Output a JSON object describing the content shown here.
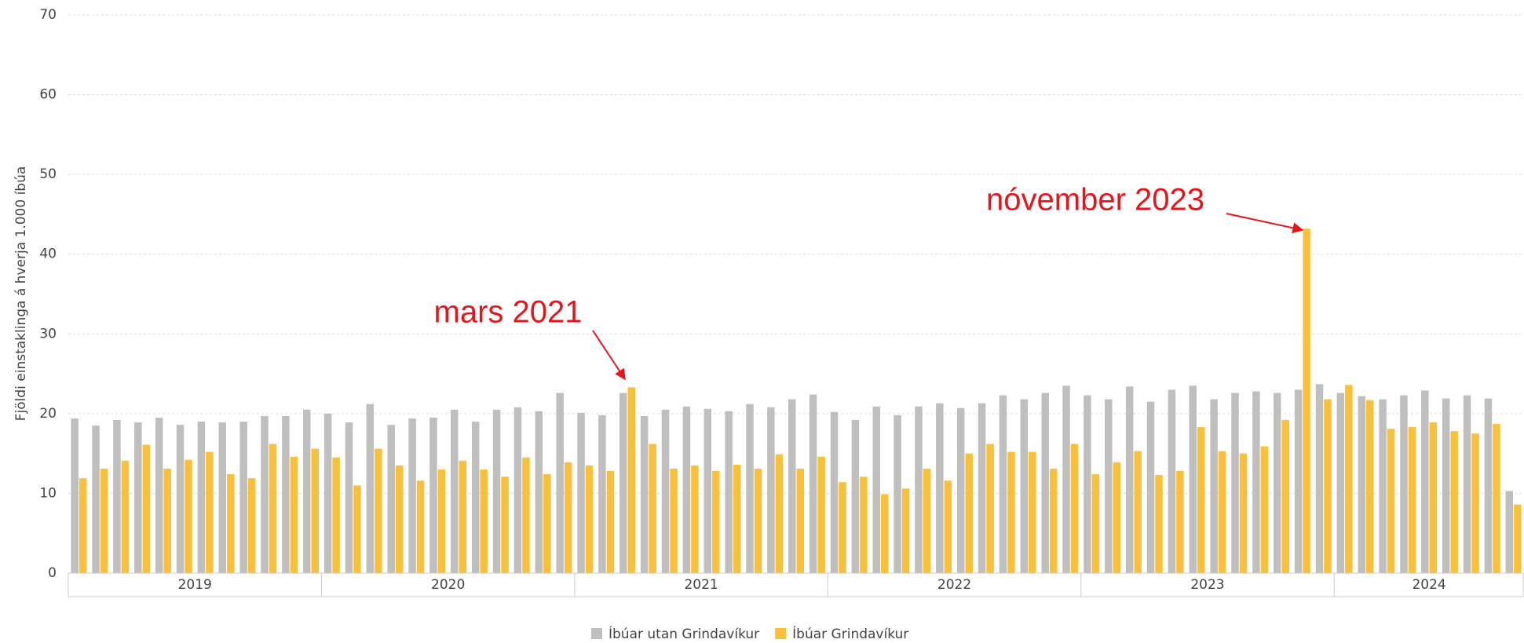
{
  "chart_data": {
    "type": "bar",
    "y_label": "Fjöldi einstaklinga á hverja 1.000 íbúa",
    "x_groups": [
      "2019",
      "2020",
      "2021",
      "2022",
      "2023",
      "2024"
    ],
    "categories": [
      null,
      null,
      null,
      null,
      null,
      null,
      null,
      null,
      null,
      null,
      null,
      null,
      null,
      null,
      null,
      null,
      null,
      null,
      null,
      null,
      null,
      null,
      null,
      null,
      null,
      null,
      null,
      null,
      null,
      null,
      null,
      null,
      null,
      null,
      null,
      null,
      null,
      null,
      null,
      null,
      null,
      null,
      null,
      null,
      null,
      null,
      null,
      null,
      null,
      null,
      null,
      null,
      null,
      null,
      null,
      null,
      null,
      null,
      null,
      null,
      null,
      null,
      null,
      null,
      null,
      null,
      null,
      null,
      null
    ],
    "series": [
      {
        "name": "Íbúar utan Grindavíkur",
        "color": "#bfbfbf",
        "values": [
          19.4,
          18.5,
          19.2,
          18.9,
          19.5,
          18.6,
          19.0,
          18.9,
          19.0,
          19.7,
          19.7,
          20.5,
          20.0,
          18.9,
          21.2,
          18.6,
          19.4,
          19.5,
          20.5,
          19.0,
          20.5,
          20.8,
          20.3,
          22.6,
          20.1,
          19.8,
          22.6,
          19.7,
          20.5,
          20.9,
          20.6,
          20.3,
          21.2,
          20.8,
          21.8,
          22.4,
          20.2,
          19.2,
          20.9,
          19.8,
          20.9,
          21.3,
          20.7,
          21.3,
          22.3,
          21.8,
          22.6,
          23.5,
          22.3,
          21.8,
          23.4,
          21.5,
          23.0,
          23.5,
          21.8,
          22.6,
          22.8,
          22.6,
          23.0,
          23.7,
          22.6,
          22.2,
          21.8,
          22.3,
          22.9,
          21.9,
          22.3,
          21.9,
          10.3
        ]
      },
      {
        "name": "Íbúar Grindavíkur",
        "color": "#fbc03a",
        "values": [
          11.9,
          13.1,
          14.1,
          16.1,
          13.1,
          14.2,
          15.2,
          12.4,
          11.9,
          16.2,
          14.6,
          15.6,
          14.5,
          11.0,
          15.6,
          13.5,
          11.6,
          13.0,
          14.1,
          13.0,
          12.1,
          14.5,
          12.4,
          13.9,
          13.5,
          12.8,
          23.3,
          16.2,
          13.1,
          13.5,
          12.8,
          13.6,
          13.1,
          14.9,
          13.1,
          14.6,
          11.4,
          12.1,
          9.9,
          10.6,
          13.1,
          11.6,
          15.0,
          16.2,
          15.2,
          15.2,
          13.1,
          16.2,
          12.4,
          13.9,
          15.3,
          12.3,
          12.8,
          18.3,
          15.3,
          15.0,
          15.9,
          19.2,
          43.2,
          21.8,
          23.6,
          21.7,
          18.1,
          18.3,
          18.9,
          17.8,
          17.5,
          18.7,
          8.6
        ]
      }
    ],
    "annotations": [
      "mars 2021",
      "nóvember 2023"
    ],
    "ylim": [
      0,
      70
    ],
    "yticks": [
      0,
      10,
      20,
      30,
      40,
      50,
      60,
      70
    ],
    "grid": true
  }
}
